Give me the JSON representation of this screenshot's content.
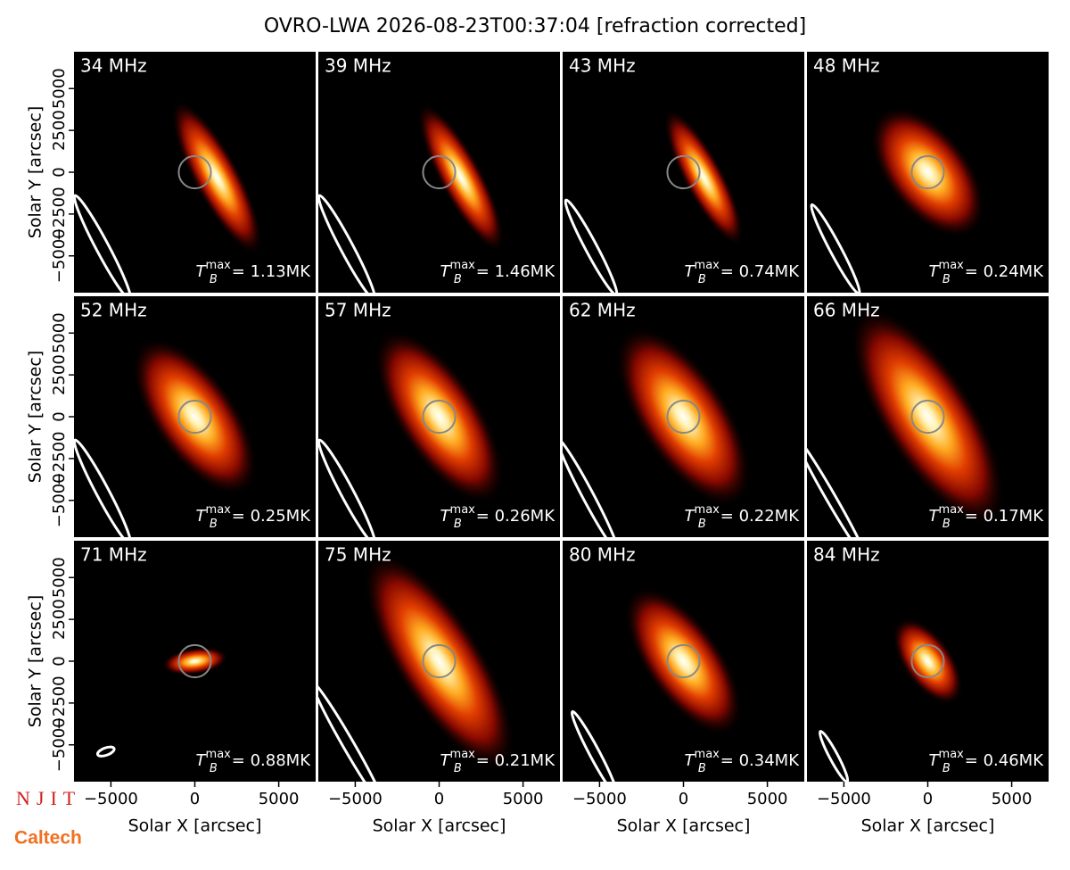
{
  "title": "OVRO-LWA 2026-08-23T00:37:04 [refraction corrected]",
  "logos": [
    "NJIT",
    "Caltech"
  ],
  "chart_data": [
    {
      "type": "image",
      "label": "34 MHz",
      "xlim": [
        -7200,
        7200
      ],
      "ylim": [
        -7200,
        7200
      ],
      "ylabel": "Solar Y [arcsec]",
      "yticks": [
        {
          "value": -5000,
          "label": "−5000"
        },
        {
          "value": -2500,
          "label": "−2500"
        },
        0,
        2500,
        5000
      ],
      "annotation": {
        "symbol": "T",
        "subscript": "B",
        "superscript": "max",
        "text": "= 1.13MK"
      }
    },
    {
      "type": "image",
      "label": "39 MHz",
      "xlim": [
        -7200,
        7200
      ],
      "ylim": [
        -7200,
        7200
      ],
      "annotation": {
        "symbol": "T",
        "subscript": "B",
        "superscript": "max",
        "text": "= 1.46MK"
      }
    },
    {
      "type": "image",
      "label": "43 MHz",
      "xlim": [
        -7200,
        7200
      ],
      "ylim": [
        -7200,
        7200
      ],
      "annotation": {
        "symbol": "T",
        "subscript": "B",
        "superscript": "max",
        "text": "= 0.74MK"
      }
    },
    {
      "type": "image",
      "label": "48 MHz",
      "xlim": [
        -7200,
        7200
      ],
      "ylim": [
        -7200,
        7200
      ],
      "annotation": {
        "symbol": "T",
        "subscript": "B",
        "superscript": "max",
        "text": "= 0.24MK"
      }
    },
    {
      "type": "image",
      "label": "52 MHz",
      "xlim": [
        -7200,
        7200
      ],
      "ylim": [
        -7200,
        7200
      ],
      "ylabel": "Solar Y [arcsec]",
      "yticks": [
        {
          "value": -5000,
          "label": "−5000"
        },
        {
          "value": -2500,
          "label": "−2500"
        },
        0,
        2500,
        5000
      ],
      "annotation": {
        "symbol": "T",
        "subscript": "B",
        "superscript": "max",
        "text": "= 0.25MK"
      }
    },
    {
      "type": "image",
      "label": "57 MHz",
      "xlim": [
        -7200,
        7200
      ],
      "ylim": [
        -7200,
        7200
      ],
      "annotation": {
        "symbol": "T",
        "subscript": "B",
        "superscript": "max",
        "text": "= 0.26MK"
      }
    },
    {
      "type": "image",
      "label": "62 MHz",
      "xlim": [
        -7200,
        7200
      ],
      "ylim": [
        -7200,
        7200
      ],
      "annotation": {
        "symbol": "T",
        "subscript": "B",
        "superscript": "max",
        "text": "= 0.22MK"
      }
    },
    {
      "type": "image",
      "label": "66 MHz",
      "xlim": [
        -7200,
        7200
      ],
      "ylim": [
        -7200,
        7200
      ],
      "annotation": {
        "symbol": "T",
        "subscript": "B",
        "superscript": "max",
        "text": "= 0.17MK"
      }
    },
    {
      "type": "image",
      "label": "71 MHz",
      "xlim": [
        -7200,
        7200
      ],
      "ylim": [
        -7200,
        7200
      ],
      "ylabel": "Solar Y [arcsec]",
      "yticks": [
        {
          "value": -5000,
          "label": "−5000"
        },
        {
          "value": -2500,
          "label": "−2500"
        },
        0,
        2500,
        5000
      ],
      "xlabel": "Solar X [arcsec]",
      "xticks": [
        {
          "value": -5000,
          "label": "−5000"
        },
        0,
        5000
      ],
      "annotation": {
        "symbol": "T",
        "subscript": "B",
        "superscript": "max",
        "text": "= 0.88MK"
      }
    },
    {
      "type": "image",
      "label": "75 MHz",
      "xlim": [
        -7200,
        7200
      ],
      "ylim": [
        -7200,
        7200
      ],
      "xlabel": "Solar X [arcsec]",
      "xticks": [
        {
          "value": -5000,
          "label": "−5000"
        },
        0,
        5000
      ],
      "annotation": {
        "symbol": "T",
        "subscript": "B",
        "superscript": "max",
        "text": "= 0.21MK"
      }
    },
    {
      "type": "image",
      "label": "80 MHz",
      "xlim": [
        -7200,
        7200
      ],
      "ylim": [
        -7200,
        7200
      ],
      "xlabel": "Solar X [arcsec]",
      "xticks": [
        {
          "value": -5000,
          "label": "−5000"
        },
        0,
        5000
      ],
      "annotation": {
        "symbol": "T",
        "subscript": "B",
        "superscript": "max",
        "text": "= 0.34MK"
      }
    },
    {
      "type": "image",
      "label": "84 MHz",
      "xlim": [
        -7200,
        7200
      ],
      "ylim": [
        -7200,
        7200
      ],
      "xlabel": "Solar X [arcsec]",
      "xticks": [
        {
          "value": -5000,
          "label": "−5000"
        },
        0,
        5000
      ],
      "annotation": {
        "symbol": "T",
        "subscript": "B",
        "superscript": "max",
        "text": "= 0.46MK"
      }
    }
  ]
}
